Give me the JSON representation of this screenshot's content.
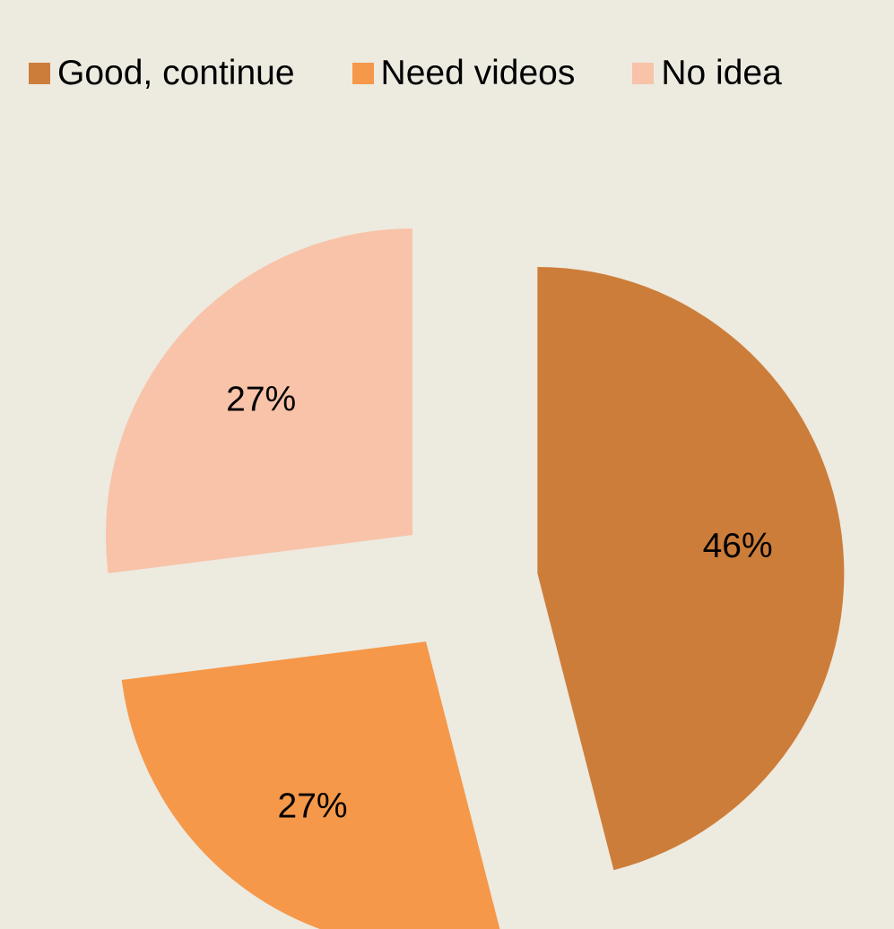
{
  "chart_data": {
    "type": "pie",
    "title": "",
    "categories": [
      "Good, continue",
      "Need videos",
      "No idea"
    ],
    "values": [
      46,
      27,
      27
    ],
    "data_labels": [
      "46%",
      "27%",
      "27%"
    ],
    "colors": [
      "#CD7D3A",
      "#F5984A",
      "#F8C3A8"
    ],
    "legend_position": "top",
    "exploded": true
  }
}
